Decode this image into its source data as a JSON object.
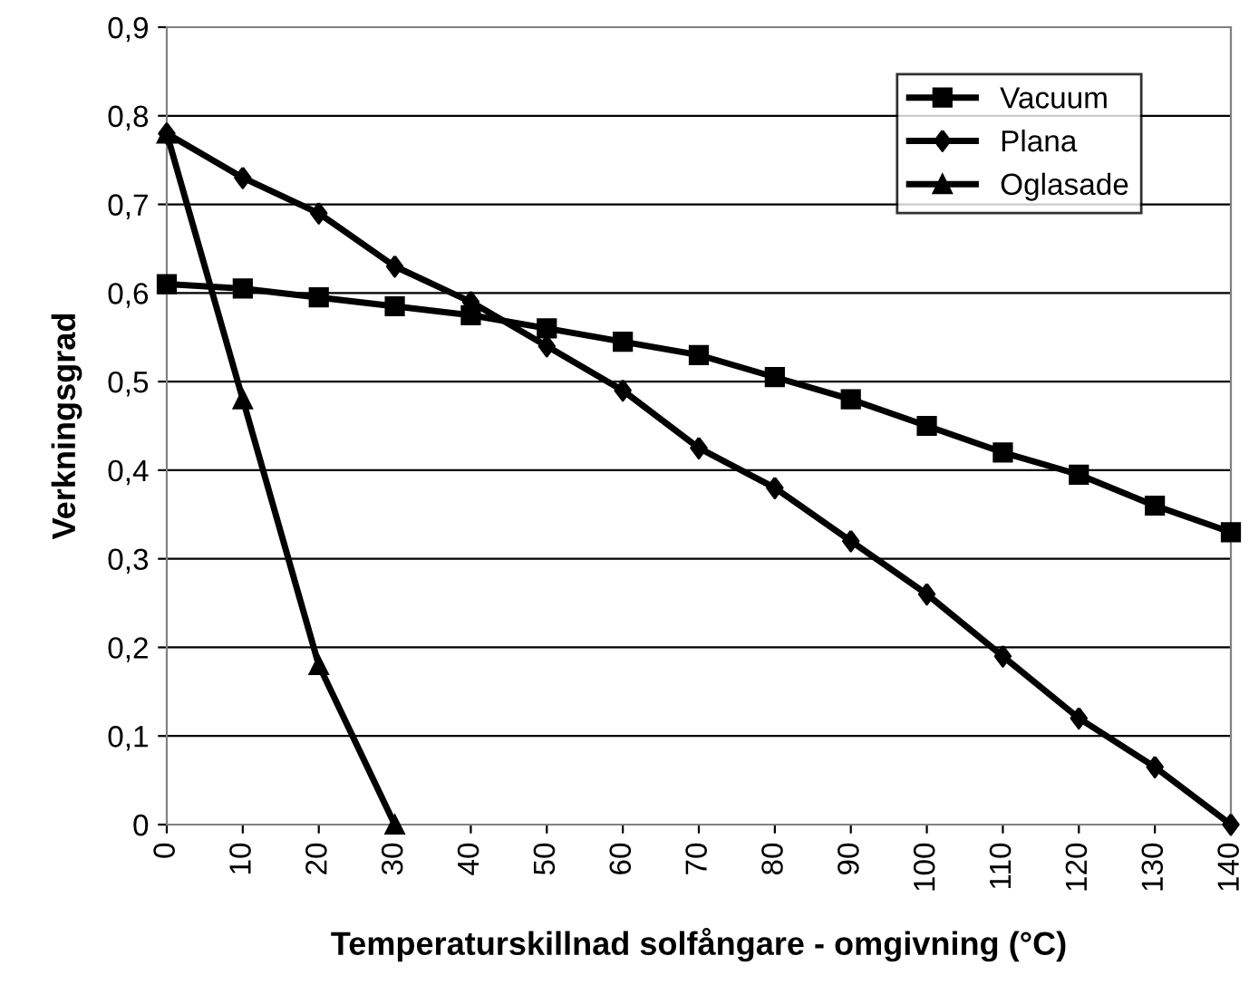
{
  "chart_data": {
    "type": "line",
    "xlabel": "Temperaturskillnad solfångare - omgivning (°C)",
    "ylabel": "Verkningsgrad",
    "categories": [
      "0",
      "10",
      "20",
      "30",
      "40",
      "50",
      "60",
      "70",
      "80",
      "90",
      "100",
      "110",
      "120",
      "130",
      "140"
    ],
    "series": [
      {
        "name": "Vacuum",
        "color": "#000000",
        "marker": "square",
        "values": [
          0.61,
          0.605,
          0.595,
          0.585,
          0.575,
          0.56,
          0.545,
          0.53,
          0.505,
          0.48,
          0.45,
          0.42,
          0.395,
          0.36,
          0.33
        ]
      },
      {
        "name": "Plana",
        "color": "#000000",
        "marker": "diamond",
        "values": [
          0.78,
          0.73,
          0.69,
          0.63,
          0.59,
          0.54,
          0.49,
          0.425,
          0.38,
          0.32,
          0.26,
          0.19,
          0.12,
          0.065,
          0.0
        ]
      },
      {
        "name": "Oglasade",
        "color": "#000000",
        "marker": "triangle",
        "values": [
          0.78,
          0.48,
          0.18,
          0.0,
          null,
          null,
          null,
          null,
          null,
          null,
          null,
          null,
          null,
          null,
          null
        ]
      }
    ],
    "ylim": [
      0,
      0.9
    ],
    "yticks": [
      {
        "value": 0,
        "label": "0"
      },
      {
        "value": 0.1,
        "label": "0,1"
      },
      {
        "value": 0.2,
        "label": "0,2"
      },
      {
        "value": 0.3,
        "label": "0,3"
      },
      {
        "value": 0.4,
        "label": "0,4"
      },
      {
        "value": 0.5,
        "label": "0,5"
      },
      {
        "value": 0.6,
        "label": "0,6"
      },
      {
        "value": 0.7,
        "label": "0,7"
      },
      {
        "value": 0.8,
        "label": "0,8"
      },
      {
        "value": 0.9,
        "label": "0,9"
      }
    ],
    "grid": "y",
    "legend": "top right",
    "line_style": "solid"
  }
}
